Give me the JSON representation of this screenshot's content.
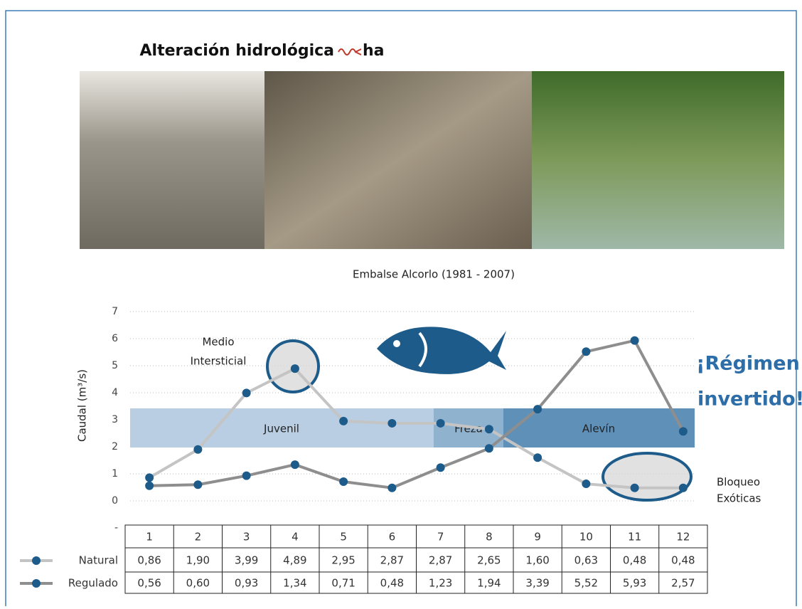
{
  "header": {
    "title": "Alteración hidrológica",
    "title_suffix": "ha"
  },
  "chart_data": {
    "type": "line",
    "title": "Embalse Alcorlo (1981 - 2007)",
    "y_label": "Caudal (m³/s)",
    "categories": [
      "1",
      "2",
      "3",
      "4",
      "5",
      "6",
      "7",
      "8",
      "9",
      "10",
      "11",
      "12"
    ],
    "series": [
      {
        "name": "Natural",
        "color": "#c4c4c4",
        "marker_color": "#1d5b8a",
        "values": [
          0.86,
          1.9,
          3.99,
          4.89,
          2.95,
          2.87,
          2.87,
          2.65,
          1.6,
          0.63,
          0.48,
          0.48
        ],
        "value_labels": [
          "0,86",
          "1,90",
          "3,99",
          "4,89",
          "2,95",
          "2,87",
          "2,87",
          "2,65",
          "1,60",
          "0,63",
          "0,48",
          "0,48"
        ]
      },
      {
        "name": "Regulado",
        "color": "#8e8e8e",
        "marker_color": "#1d5b8a",
        "values": [
          0.56,
          0.6,
          0.93,
          1.34,
          0.71,
          0.48,
          1.23,
          1.94,
          3.39,
          5.52,
          5.93,
          2.57
        ],
        "value_labels": [
          "0,56",
          "0,60",
          "0,93",
          "1,34",
          "0,71",
          "0,48",
          "1,23",
          "1,94",
          "3,39",
          "5,52",
          "5,93",
          "2,57"
        ]
      }
    ],
    "ylim": [
      -1,
      7
    ],
    "yticks": [
      {
        "value": -1,
        "label": "-"
      },
      0,
      1,
      2,
      3,
      4,
      5,
      6,
      7
    ],
    "grid": true,
    "annotations": {
      "stages": [
        "Juvenil",
        "Freza",
        "Alevín"
      ],
      "medio": [
        "Medio",
        "Intersticial"
      ],
      "bloqueo": [
        "Bloqueo",
        "Exóticas"
      ],
      "callout": [
        "¡Régimen",
        "invertido!"
      ]
    }
  }
}
